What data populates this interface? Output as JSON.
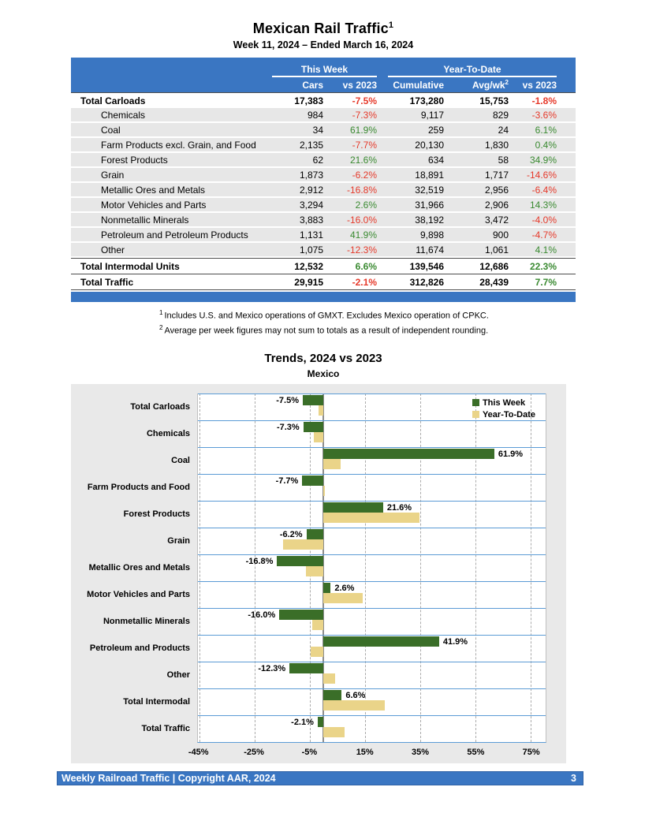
{
  "page": {
    "title": "Mexican Rail Traffic",
    "title_superscript": "1",
    "subtitle": "Week 11, 2024 – Ended March 16, 2024"
  },
  "table": {
    "group_this_week": "This Week",
    "group_ytd": "Year-To-Date",
    "columns": [
      "Cars",
      "vs 2023",
      "Cumulative",
      "Avg/wk",
      "vs 2023"
    ],
    "avg_superscript": "2",
    "rows": [
      {
        "label": "Total Carloads",
        "total": true,
        "indent": false,
        "cars": "17,383",
        "week_vs_2023": "-7.5%",
        "cumulative": "173,280",
        "avg_wk": "15,753",
        "ytd_vs_2023": "-1.8%"
      },
      {
        "label": "Chemicals",
        "total": false,
        "indent": true,
        "cars": "984",
        "week_vs_2023": "-7.3%",
        "cumulative": "9,117",
        "avg_wk": "829",
        "ytd_vs_2023": "-3.6%"
      },
      {
        "label": "Coal",
        "total": false,
        "indent": true,
        "cars": "34",
        "week_vs_2023": "61.9%",
        "cumulative": "259",
        "avg_wk": "24",
        "ytd_vs_2023": "6.1%"
      },
      {
        "label": "Farm Products excl. Grain, and Food",
        "total": false,
        "indent": true,
        "cars": "2,135",
        "week_vs_2023": "-7.7%",
        "cumulative": "20,130",
        "avg_wk": "1,830",
        "ytd_vs_2023": "0.4%"
      },
      {
        "label": "Forest Products",
        "total": false,
        "indent": true,
        "cars": "62",
        "week_vs_2023": "21.6%",
        "cumulative": "634",
        "avg_wk": "58",
        "ytd_vs_2023": "34.9%"
      },
      {
        "label": "Grain",
        "total": false,
        "indent": true,
        "cars": "1,873",
        "week_vs_2023": "-6.2%",
        "cumulative": "18,891",
        "avg_wk": "1,717",
        "ytd_vs_2023": "-14.6%"
      },
      {
        "label": "Metallic Ores and Metals",
        "total": false,
        "indent": true,
        "cars": "2,912",
        "week_vs_2023": "-16.8%",
        "cumulative": "32,519",
        "avg_wk": "2,956",
        "ytd_vs_2023": "-6.4%"
      },
      {
        "label": "Motor Vehicles and Parts",
        "total": false,
        "indent": true,
        "cars": "3,294",
        "week_vs_2023": "2.6%",
        "cumulative": "31,966",
        "avg_wk": "2,906",
        "ytd_vs_2023": "14.3%"
      },
      {
        "label": "Nonmetallic Minerals",
        "total": false,
        "indent": true,
        "cars": "3,883",
        "week_vs_2023": "-16.0%",
        "cumulative": "38,192",
        "avg_wk": "3,472",
        "ytd_vs_2023": "-4.0%"
      },
      {
        "label": "Petroleum and Petroleum Products",
        "total": false,
        "indent": true,
        "cars": "1,131",
        "week_vs_2023": "41.9%",
        "cumulative": "9,898",
        "avg_wk": "900",
        "ytd_vs_2023": "-4.7%"
      },
      {
        "label": "Other",
        "total": false,
        "indent": true,
        "cars": "1,075",
        "week_vs_2023": "-12.3%",
        "cumulative": "11,674",
        "avg_wk": "1,061",
        "ytd_vs_2023": "4.1%"
      },
      {
        "label": "Total Intermodal Units",
        "total": true,
        "indent": false,
        "cars": "12,532",
        "week_vs_2023": "6.6%",
        "cumulative": "139,546",
        "avg_wk": "12,686",
        "ytd_vs_2023": "22.3%"
      },
      {
        "label": "Total Traffic",
        "total": true,
        "indent": false,
        "cars": "29,915",
        "week_vs_2023": "-2.1%",
        "cumulative": "312,826",
        "avg_wk": "28,439",
        "ytd_vs_2023": "7.7%"
      }
    ]
  },
  "footnotes": [
    {
      "sup": "1",
      "text": "Includes U.S. and Mexico operations of GMXT. Excludes Mexico operation of CPKC."
    },
    {
      "sup": "2",
      "text": "Average per week figures may not sum to totals as a result of independent rounding."
    }
  ],
  "chart_data": {
    "type": "bar",
    "orientation": "horizontal",
    "title": "Trends, 2024 vs 2023",
    "subtitle": "Mexico",
    "categories": [
      "Total Carloads",
      "Chemicals",
      "Coal",
      "Farm Products and Food",
      "Forest Products",
      "Grain",
      "Metallic Ores and Metals",
      "Motor Vehicles and Parts",
      "Nonmetallic Minerals",
      "Petroleum and Products",
      "Other",
      "Total Intermodal",
      "Total Traffic"
    ],
    "series": [
      {
        "name": "This Week",
        "color": "#3a6e28",
        "values": [
          -7.5,
          -7.3,
          61.9,
          -7.7,
          21.6,
          -6.2,
          -16.8,
          2.6,
          -16.0,
          41.9,
          -12.3,
          6.6,
          -2.1
        ]
      },
      {
        "name": "Year-To-Date",
        "color": "#ead489",
        "values": [
          -1.8,
          -3.6,
          6.1,
          0.4,
          34.9,
          -14.6,
          -6.4,
          14.3,
          -4.0,
          -4.7,
          4.1,
          22.3,
          7.7
        ]
      }
    ],
    "bar_labels": [
      "-7.5%",
      "-7.3%",
      "61.9%",
      "-7.7%",
      "21.6%",
      "-6.2%",
      "-16.8%",
      "2.6%",
      "-16.0%",
      "41.9%",
      "-12.3%",
      "6.6%",
      "-2.1%"
    ],
    "xlim": [
      -45.5,
      80.5
    ],
    "x_tick_values": [
      -45,
      -25,
      -5,
      15,
      35,
      55,
      75
    ],
    "x_tick_labels": [
      "-45%",
      "-25%",
      "-5%",
      "15%",
      "35%",
      "55%",
      "75%"
    ],
    "grid": "dashed-vertical-at-ticks",
    "legend_position": "top-right"
  },
  "colors": {
    "band_blue": "#3a76c2",
    "grid_blue": "#5b9bd5",
    "neg_red": "#e6392a",
    "pos_green": "#3a8a31"
  },
  "footer": {
    "left": "Weekly Railroad Traffic | Copyright AAR, 2024",
    "page": "3"
  }
}
